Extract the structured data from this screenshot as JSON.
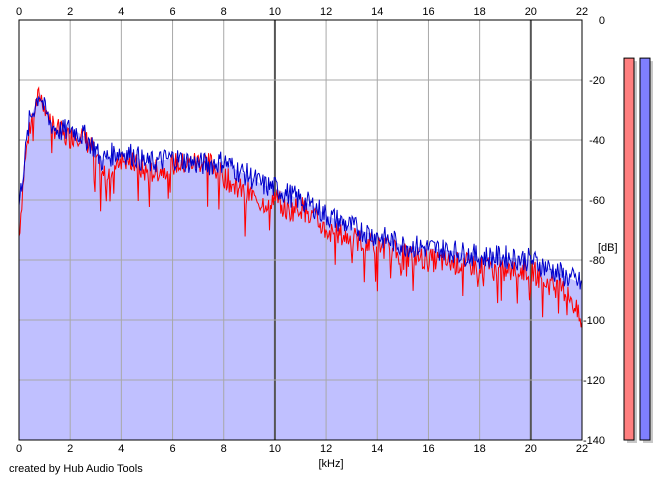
{
  "chart_data": {
    "type": "area",
    "xlabel": "[kHz]",
    "ylabel": "[dB]",
    "x_ticks": [
      0,
      2,
      4,
      6,
      8,
      10,
      12,
      14,
      16,
      18,
      20,
      22
    ],
    "y_ticks": [
      0,
      -20,
      -40,
      -60,
      -80,
      -100,
      -120,
      -140
    ],
    "xlim": [
      0,
      22
    ],
    "ylim": [
      -140,
      0
    ],
    "grid": true,
    "series": [
      {
        "color": "#ff0000",
        "x": [
          0,
          0.2,
          0.4,
          0.6,
          0.8,
          1.0,
          1.2,
          1.4,
          1.6,
          1.8,
          2.0,
          2.2,
          2.4,
          2.6,
          2.8,
          3.0,
          3.2,
          3.4,
          3.6,
          3.8,
          4.0,
          4.5,
          5.0,
          5.5,
          6.0,
          6.5,
          7.0,
          7.5,
          8.0,
          8.5,
          9.0,
          9.5,
          10.0,
          10.5,
          11.0,
          11.5,
          12.0,
          13.0,
          14.0,
          15.0,
          16.0,
          17.0,
          18.0,
          19.0,
          20.0,
          20.5,
          21.0,
          21.5,
          22.0
        ],
        "y": [
          -72,
          -50,
          -36,
          -30,
          -25,
          -28,
          -33,
          -36,
          -37,
          -39,
          -39,
          -38,
          -38,
          -40,
          -42,
          -45,
          -53,
          -51,
          -49,
          -47,
          -46,
          -48,
          -51,
          -50,
          -48,
          -48,
          -47,
          -48,
          -52,
          -56,
          -58,
          -61,
          -59,
          -64,
          -62,
          -66,
          -70,
          -73,
          -75,
          -78,
          -80,
          -81,
          -82,
          -84,
          -83,
          -87,
          -89,
          -91,
          -102
        ]
      },
      {
        "color": "#0000cc",
        "x": [
          0,
          0.2,
          0.4,
          0.6,
          0.8,
          1.0,
          1.2,
          1.4,
          1.6,
          1.8,
          2.0,
          2.2,
          2.4,
          2.6,
          2.8,
          3.0,
          3.2,
          3.4,
          3.6,
          3.8,
          4.0,
          4.5,
          5.0,
          5.5,
          6.0,
          6.5,
          7.0,
          7.5,
          8.0,
          8.5,
          9.0,
          9.5,
          10.0,
          10.5,
          11.0,
          11.5,
          12.0,
          13.0,
          14.0,
          15.0,
          16.0,
          17.0,
          18.0,
          19.0,
          20.0,
          20.5,
          21.0,
          21.5,
          22.0
        ],
        "y": [
          -62,
          -48,
          -34,
          -29,
          -24,
          -30,
          -34,
          -36,
          -37,
          -37,
          -36,
          -37,
          -38,
          -39,
          -41,
          -43,
          -47,
          -46,
          -45,
          -44,
          -44,
          -45,
          -48,
          -47,
          -46,
          -47,
          -48,
          -48,
          -47,
          -50,
          -52,
          -55,
          -56,
          -58,
          -60,
          -62,
          -65,
          -69,
          -72,
          -75,
          -76,
          -77,
          -79,
          -79,
          -80,
          -82,
          -84,
          -86,
          -88
        ]
      }
    ],
    "area_fill": "#c0c0ff",
    "meters": [
      {
        "color": "#ff7f7f",
        "level": 0.95
      },
      {
        "color": "#7f7fff",
        "level": 0.95
      }
    ]
  },
  "footer": {
    "credit": "created by Hub Audio Tools"
  }
}
